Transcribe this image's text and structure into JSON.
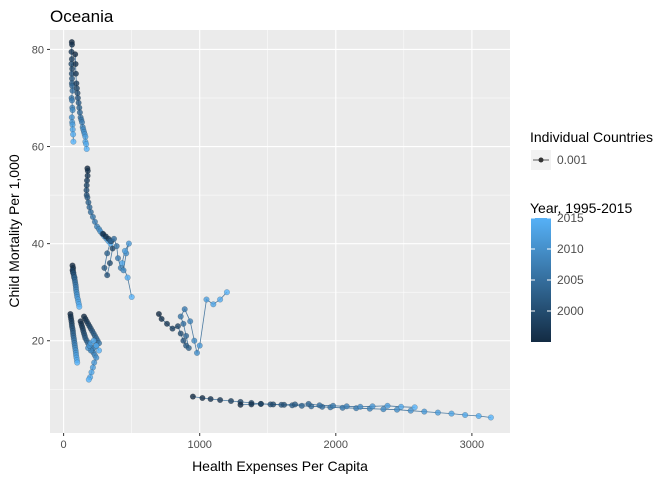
{
  "chart_data": {
    "type": "scatter",
    "title": "Oceania",
    "xlabel": "Health Expenses Per Capita",
    "ylabel": "Child Mortality Per 1,000",
    "xlim": [
      -100,
      3280
    ],
    "ylim": [
      1,
      84
    ],
    "xticks": [
      0,
      1000,
      2000,
      3000
    ],
    "yticks": [
      20,
      40,
      60,
      80
    ],
    "grid": true,
    "legend": {
      "position": "right",
      "size_title": "Individual Countries",
      "size_entry": "0.001",
      "color_title": "Year, 1995-2015",
      "color_ticks": [
        2000,
        2005,
        2010,
        2015
      ],
      "color_range": [
        1995,
        2015
      ],
      "colors": {
        "low": "#132b43",
        "high": "#56b1f7"
      }
    },
    "colors": {
      "panel": "#ebebeb",
      "grid": "#ffffff",
      "text": "#4d4d4d",
      "line": "#3b6f9a"
    },
    "series": [
      {
        "x": [
          60,
          62,
          58,
          61,
          63,
          57,
          60,
          62,
          61,
          63,
          65,
          59,
          62,
          64,
          66,
          60,
          63,
          65,
          67,
          70,
          72
        ],
        "y": [
          81.5,
          81,
          79.5,
          78,
          76,
          77,
          75,
          74,
          73,
          72.5,
          71.5,
          70,
          69.5,
          68,
          67.5,
          66,
          65,
          64.5,
          63.5,
          62.5,
          61
        ]
      },
      {
        "x": [
          85,
          88,
          90,
          94,
          98,
          102,
          105,
          110,
          115,
          120,
          125,
          130,
          135,
          140,
          145,
          150,
          155,
          160,
          160,
          165,
          170
        ],
        "y": [
          79,
          77,
          75,
          73,
          72,
          71,
          70,
          69,
          68,
          67,
          66,
          65.5,
          65,
          64,
          63.5,
          63,
          62.5,
          62,
          61,
          60.5,
          59.5
        ]
      },
      {
        "x": [
          175,
          178,
          176,
          172,
          170,
          168,
          170,
          175,
          182,
          190,
          200,
          215,
          230,
          245,
          260,
          270,
          285,
          300,
          315,
          330,
          345
        ],
        "y": [
          55.5,
          55,
          54,
          53,
          52,
          51,
          50,
          49.5,
          48.5,
          47.5,
          46.5,
          45.5,
          44.5,
          43.5,
          43,
          42.5,
          42,
          41.5,
          41,
          40.5,
          40
        ]
      },
      {
        "x": [
          290,
          310,
          330,
          350,
          360,
          340,
          320,
          300,
          320,
          345,
          370,
          390,
          400,
          420,
          440,
          460,
          480,
          450,
          430,
          470,
          500
        ],
        "y": [
          42,
          41.5,
          41,
          40.5,
          39,
          36,
          33.5,
          35,
          38,
          40.5,
          41,
          39.5,
          37,
          35,
          34.5,
          38,
          40,
          38.5,
          36,
          33,
          29
        ]
      },
      {
        "x": [
          700,
          720,
          760,
          800,
          840,
          860,
          880,
          900,
          920,
          900,
          880,
          860,
          890,
          930,
          960,
          980,
          1000,
          1050,
          1100,
          1150,
          1200
        ],
        "y": [
          25.5,
          24.5,
          23.5,
          22.5,
          23,
          21.5,
          20,
          19,
          18.5,
          21,
          23.5,
          25,
          26.5,
          24,
          20,
          17.5,
          19,
          28.5,
          27.5,
          28.5,
          30
        ]
      },
      {
        "x": [
          65,
          70,
          68,
          66,
          70,
          72,
          75,
          78,
          80,
          82,
          85,
          88,
          90,
          92,
          95,
          98,
          100,
          105,
          108,
          112,
          115
        ],
        "y": [
          35.5,
          35,
          34.5,
          34.5,
          34,
          34,
          33.5,
          33,
          33,
          32.5,
          32,
          31.5,
          31,
          30.5,
          30,
          29.5,
          29,
          28.5,
          28,
          27.5,
          27
        ]
      },
      {
        "x": [
          50,
          52,
          55,
          58,
          60,
          62,
          65,
          68,
          70,
          72,
          75,
          78,
          80,
          82,
          85,
          88,
          90,
          92,
          95,
          98,
          100
        ],
        "y": [
          25.5,
          25,
          24.5,
          24,
          23.5,
          23,
          22.5,
          22,
          21.5,
          21,
          20.5,
          20,
          19.5,
          19,
          18.5,
          18,
          17.5,
          17,
          16.5,
          16,
          15.5
        ]
      },
      {
        "x": [
          125,
          130,
          135,
          140,
          145,
          150,
          155,
          160,
          170,
          180,
          190,
          200,
          210,
          220,
          230,
          240,
          225,
          215,
          205,
          195,
          185
        ],
        "y": [
          24,
          23.5,
          23,
          22.5,
          22,
          21.5,
          21,
          20.5,
          20,
          19.5,
          19,
          18.5,
          18,
          17.5,
          17,
          16.5,
          15.5,
          14.5,
          13.5,
          12.5,
          12
        ]
      },
      {
        "x": [
          150,
          160,
          170,
          180,
          190,
          200,
          210,
          220,
          230,
          240,
          250,
          260,
          240,
          220,
          200,
          180,
          190,
          200,
          220,
          240,
          260
        ],
        "y": [
          25,
          24.5,
          24,
          23.5,
          23,
          22.5,
          22,
          21.5,
          21,
          20.5,
          20,
          19.5,
          19,
          18.5,
          18,
          18.5,
          19,
          19.5,
          20,
          19,
          18
        ]
      },
      {
        "x": [
          950,
          1020,
          1080,
          1150,
          1230,
          1300,
          1380,
          1450,
          1520,
          1600,
          1680,
          1750,
          1820,
          1900,
          1960,
          2050,
          2150,
          2250,
          2350,
          2450,
          2550,
          2650,
          2750,
          2850,
          2950,
          3050,
          3140
        ],
        "y": [
          8.5,
          8.2,
          8.0,
          7.8,
          7.6,
          7.4,
          7.2,
          7.0,
          6.9,
          6.8,
          6.7,
          6.6,
          6.5,
          6.4,
          6.3,
          6.2,
          6.1,
          6.0,
          5.9,
          5.8,
          5.6,
          5.4,
          5.2,
          5.0,
          4.7,
          4.5,
          4.2
        ]
      },
      {
        "x": [
          1300,
          1380,
          1450,
          1540,
          1620,
          1700,
          1800,
          1880,
          1980,
          2080,
          2180,
          2270,
          2380,
          2480,
          2580
        ],
        "y": [
          6.8,
          6.9,
          7.0,
          6.9,
          6.8,
          6.9,
          7.0,
          6.7,
          6.6,
          6.5,
          6.4,
          6.5,
          6.6,
          6.4,
          6.3
        ]
      }
    ]
  }
}
